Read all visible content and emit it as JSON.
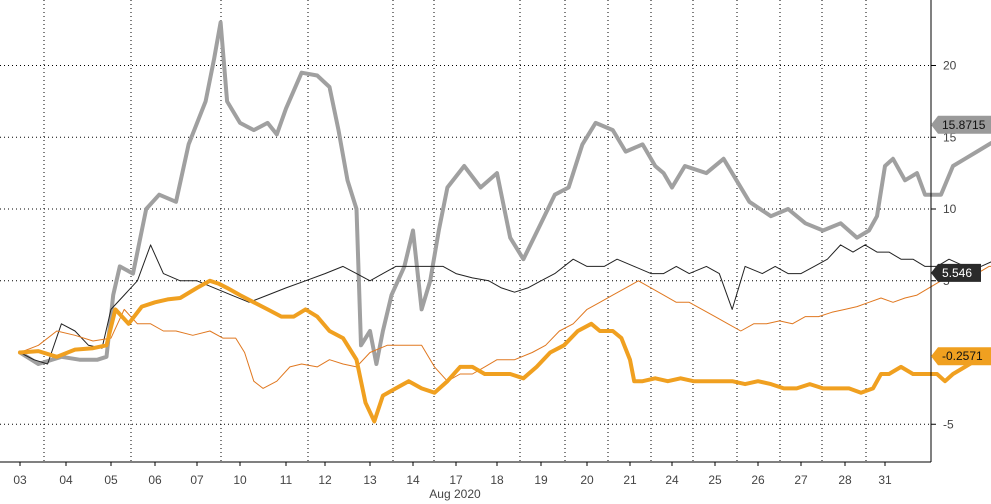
{
  "chart_data": {
    "type": "line",
    "month_label": "Aug 2020",
    "x_tick_labels": [
      "03",
      "04",
      "05",
      "06",
      "07",
      "10",
      "11",
      "12",
      "13",
      "14",
      "17",
      "18",
      "19",
      "20",
      "21",
      "24",
      "25",
      "26",
      "27",
      "28",
      "31"
    ],
    "y_tick_labels": [
      "20",
      "15",
      "10",
      "5",
      "-5"
    ],
    "ylim": [
      -7.5,
      25
    ],
    "grid": true,
    "grid_style": "dotted",
    "y_axis_side": "right",
    "series": [
      {
        "color": "#a0a0a0",
        "end_label": "15.8715",
        "values": [
          [
            0,
            0
          ],
          [
            0.4,
            -0.8
          ],
          [
            0.9,
            -0.3
          ],
          [
            1.3,
            -0.5
          ],
          [
            1.7,
            -0.5
          ],
          [
            1.9,
            -0.3
          ],
          [
            2.05,
            4
          ],
          [
            2.2,
            6
          ],
          [
            2.5,
            5.5
          ],
          [
            2.8,
            10
          ],
          [
            3.1,
            11
          ],
          [
            3.5,
            10.5
          ],
          [
            3.8,
            14.5
          ],
          [
            4.2,
            17.5
          ],
          [
            4.4,
            20.5
          ],
          [
            4.55,
            23
          ],
          [
            4.7,
            17.5
          ],
          [
            5.0,
            16
          ],
          [
            5.3,
            15.5
          ],
          [
            5.6,
            16
          ],
          [
            5.8,
            15.2
          ],
          [
            6.0,
            17
          ],
          [
            6.4,
            19.5
          ],
          [
            6.8,
            19.3
          ],
          [
            7.1,
            18.5
          ],
          [
            7.3,
            15.5
          ],
          [
            7.5,
            12
          ],
          [
            7.7,
            10
          ],
          [
            7.8,
            0.5
          ],
          [
            8.0,
            1.5
          ],
          [
            8.15,
            -0.8
          ],
          [
            8.3,
            1.5
          ],
          [
            8.5,
            4
          ],
          [
            8.8,
            6
          ],
          [
            9.0,
            8.5
          ],
          [
            9.2,
            3
          ],
          [
            9.4,
            5
          ],
          [
            9.6,
            8.5
          ],
          [
            9.8,
            11.5
          ],
          [
            10.2,
            13
          ],
          [
            10.6,
            11.5
          ],
          [
            11.0,
            12.5
          ],
          [
            11.3,
            8
          ],
          [
            11.6,
            6.5
          ],
          [
            12.0,
            9
          ],
          [
            12.3,
            11
          ],
          [
            12.6,
            11.5
          ],
          [
            12.9,
            14.5
          ],
          [
            13.2,
            16
          ],
          [
            13.6,
            15.5
          ],
          [
            13.9,
            14
          ],
          [
            14.3,
            14.5
          ],
          [
            14.6,
            13
          ],
          [
            14.8,
            12.5
          ],
          [
            15.0,
            11.5
          ],
          [
            15.3,
            13
          ],
          [
            15.8,
            12.5
          ],
          [
            16.2,
            13.5
          ],
          [
            16.5,
            12
          ],
          [
            16.8,
            10.5
          ],
          [
            17.3,
            9.5
          ],
          [
            17.7,
            10
          ],
          [
            18.1,
            9
          ],
          [
            18.5,
            8.5
          ],
          [
            18.9,
            9
          ],
          [
            19.3,
            8
          ],
          [
            19.6,
            8.5
          ],
          [
            19.8,
            9.5
          ],
          [
            20.0,
            13
          ],
          [
            20.2,
            13.5
          ],
          [
            20.5,
            12
          ],
          [
            20.8,
            12.5
          ],
          [
            21.0,
            11
          ],
          [
            21.4,
            11
          ],
          [
            21.7,
            13
          ],
          [
            22.0,
            13.5
          ],
          [
            22.3,
            14
          ],
          [
            22.6,
            14.5
          ],
          [
            22.9,
            15
          ],
          [
            23.2,
            15
          ],
          [
            23.5,
            15.5
          ],
          [
            23.7,
            16
          ],
          [
            23.85,
            15.87
          ]
        ]
      },
      {
        "color": "#222222",
        "end_label": "5.546",
        "values": [
          [
            0,
            0
          ],
          [
            0.3,
            -0.5
          ],
          [
            0.6,
            -0.8
          ],
          [
            0.9,
            2
          ],
          [
            1.2,
            1.5
          ],
          [
            1.5,
            0.5
          ],
          [
            1.8,
            0.3
          ],
          [
            2.0,
            3
          ],
          [
            2.3,
            4
          ],
          [
            2.6,
            5
          ],
          [
            2.9,
            7.5
          ],
          [
            3.2,
            5.5
          ],
          [
            3.6,
            5
          ],
          [
            4.0,
            5
          ],
          [
            4.4,
            4.5
          ],
          [
            4.8,
            4
          ],
          [
            5.2,
            3.5
          ],
          [
            5.6,
            4
          ],
          [
            6.0,
            4.5
          ],
          [
            6.5,
            5
          ],
          [
            7.0,
            5.5
          ],
          [
            7.4,
            6
          ],
          [
            7.7,
            5.5
          ],
          [
            8.0,
            5
          ],
          [
            8.3,
            5.5
          ],
          [
            8.6,
            6
          ],
          [
            9.0,
            6
          ],
          [
            9.4,
            6
          ],
          [
            9.7,
            6
          ],
          [
            10.0,
            5.5
          ],
          [
            10.4,
            5.2
          ],
          [
            10.8,
            5
          ],
          [
            11.1,
            4.5
          ],
          [
            11.4,
            4.2
          ],
          [
            11.7,
            4.5
          ],
          [
            12.0,
            5
          ],
          [
            12.3,
            5.5
          ],
          [
            12.7,
            6.5
          ],
          [
            13.0,
            6
          ],
          [
            13.4,
            6
          ],
          [
            13.7,
            6.5
          ],
          [
            14.1,
            6
          ],
          [
            14.5,
            5.5
          ],
          [
            14.8,
            5.5
          ],
          [
            15.1,
            6
          ],
          [
            15.4,
            5.5
          ],
          [
            15.8,
            6
          ],
          [
            16.1,
            5.5
          ],
          [
            16.4,
            3
          ],
          [
            16.7,
            6
          ],
          [
            17.1,
            5.5
          ],
          [
            17.4,
            6
          ],
          [
            17.7,
            5.5
          ],
          [
            18.0,
            5.5
          ],
          [
            18.3,
            6
          ],
          [
            18.6,
            6.5
          ],
          [
            18.9,
            7.5
          ],
          [
            19.2,
            7
          ],
          [
            19.5,
            7.5
          ],
          [
            19.8,
            7
          ],
          [
            20.1,
            7
          ],
          [
            20.4,
            6.5
          ],
          [
            20.7,
            6.5
          ],
          [
            21.0,
            6
          ],
          [
            21.3,
            6
          ],
          [
            21.6,
            6.5
          ],
          [
            22.0,
            6
          ],
          [
            22.4,
            6
          ],
          [
            22.8,
            6.5
          ],
          [
            23.1,
            6
          ],
          [
            23.4,
            7
          ],
          [
            23.6,
            6.5
          ],
          [
            23.85,
            5.55
          ]
        ]
      },
      {
        "color": "#e07820",
        "end_label": "",
        "values": [
          [
            0,
            0
          ],
          [
            0.4,
            0.5
          ],
          [
            0.8,
            1.5
          ],
          [
            1.2,
            1.2
          ],
          [
            1.6,
            0.8
          ],
          [
            2.0,
            1
          ],
          [
            2.3,
            3
          ],
          [
            2.6,
            2
          ],
          [
            2.9,
            2
          ],
          [
            3.2,
            1.5
          ],
          [
            3.5,
            1.5
          ],
          [
            3.9,
            1.2
          ],
          [
            4.3,
            1.5
          ],
          [
            4.6,
            1
          ],
          [
            4.9,
            1
          ],
          [
            5.1,
            0
          ],
          [
            5.3,
            -2
          ],
          [
            5.5,
            -2.5
          ],
          [
            5.8,
            -2
          ],
          [
            6.1,
            -1
          ],
          [
            6.4,
            -0.8
          ],
          [
            6.8,
            -1
          ],
          [
            7.1,
            -0.5
          ],
          [
            7.4,
            -0.8
          ],
          [
            7.7,
            -1
          ],
          [
            8.0,
            0
          ],
          [
            8.4,
            0.5
          ],
          [
            8.8,
            0.5
          ],
          [
            9.2,
            0.5
          ],
          [
            9.5,
            -1
          ],
          [
            9.8,
            -2
          ],
          [
            10.1,
            -1.5
          ],
          [
            10.4,
            -1.5
          ],
          [
            10.7,
            -1
          ],
          [
            11.0,
            -0.5
          ],
          [
            11.4,
            -0.5
          ],
          [
            11.8,
            0
          ],
          [
            12.1,
            0.5
          ],
          [
            12.4,
            1.5
          ],
          [
            12.7,
            2
          ],
          [
            13.0,
            3
          ],
          [
            13.3,
            3.5
          ],
          [
            13.6,
            4
          ],
          [
            13.9,
            4.5
          ],
          [
            14.2,
            5
          ],
          [
            14.5,
            4.5
          ],
          [
            14.8,
            4
          ],
          [
            15.1,
            3.5
          ],
          [
            15.4,
            3.5
          ],
          [
            15.7,
            3
          ],
          [
            16.0,
            2.5
          ],
          [
            16.3,
            2
          ],
          [
            16.6,
            1.5
          ],
          [
            16.9,
            2
          ],
          [
            17.2,
            2
          ],
          [
            17.5,
            2.2
          ],
          [
            17.8,
            2
          ],
          [
            18.1,
            2.5
          ],
          [
            18.4,
            2.5
          ],
          [
            18.7,
            2.8
          ],
          [
            19.0,
            3
          ],
          [
            19.3,
            3.2
          ],
          [
            19.6,
            3.5
          ],
          [
            19.9,
            3.8
          ],
          [
            20.2,
            3.5
          ],
          [
            20.5,
            3.8
          ],
          [
            20.8,
            4
          ],
          [
            21.1,
            4.5
          ],
          [
            21.4,
            5
          ],
          [
            21.7,
            5.5
          ],
          [
            22.0,
            5
          ],
          [
            22.3,
            5.5
          ],
          [
            22.6,
            6
          ],
          [
            22.9,
            6
          ],
          [
            23.2,
            6
          ],
          [
            23.5,
            6.2
          ],
          [
            23.85,
            5.6
          ]
        ]
      },
      {
        "color": "#f0a020",
        "end_label": "-0.2571",
        "values": [
          [
            0,
            0
          ],
          [
            0.4,
            0.1
          ],
          [
            0.8,
            -0.3
          ],
          [
            1.2,
            0.2
          ],
          [
            1.6,
            0.3
          ],
          [
            1.9,
            0.5
          ],
          [
            2.1,
            3
          ],
          [
            2.4,
            2
          ],
          [
            2.7,
            3.2
          ],
          [
            3.0,
            3.5
          ],
          [
            3.3,
            3.7
          ],
          [
            3.6,
            3.8
          ],
          [
            4.0,
            4.5
          ],
          [
            4.3,
            5
          ],
          [
            4.5,
            4.8
          ],
          [
            4.7,
            4.5
          ],
          [
            5.0,
            4
          ],
          [
            5.3,
            3.5
          ],
          [
            5.6,
            3
          ],
          [
            5.9,
            2.5
          ],
          [
            6.2,
            2.5
          ],
          [
            6.5,
            3
          ],
          [
            6.8,
            2.5
          ],
          [
            7.1,
            1.5
          ],
          [
            7.4,
            1
          ],
          [
            7.7,
            -0.5
          ],
          [
            7.9,
            -3.5
          ],
          [
            8.1,
            -4.8
          ],
          [
            8.3,
            -3
          ],
          [
            8.6,
            -2.5
          ],
          [
            8.9,
            -2
          ],
          [
            9.2,
            -2.5
          ],
          [
            9.5,
            -2.8
          ],
          [
            9.8,
            -2
          ],
          [
            10.1,
            -1
          ],
          [
            10.4,
            -1
          ],
          [
            10.7,
            -1.5
          ],
          [
            11.0,
            -1.5
          ],
          [
            11.3,
            -1.5
          ],
          [
            11.6,
            -1.8
          ],
          [
            11.9,
            -1
          ],
          [
            12.2,
            0
          ],
          [
            12.5,
            0.5
          ],
          [
            12.8,
            1.5
          ],
          [
            13.1,
            2
          ],
          [
            13.3,
            1.5
          ],
          [
            13.6,
            1.5
          ],
          [
            13.8,
            1
          ],
          [
            14.0,
            -0.5
          ],
          [
            14.1,
            -2
          ],
          [
            14.3,
            -2
          ],
          [
            14.6,
            -1.8
          ],
          [
            14.9,
            -2
          ],
          [
            15.2,
            -1.8
          ],
          [
            15.5,
            -2
          ],
          [
            15.8,
            -2
          ],
          [
            16.1,
            -2
          ],
          [
            16.4,
            -2
          ],
          [
            16.7,
            -2.2
          ],
          [
            17.0,
            -2
          ],
          [
            17.3,
            -2.2
          ],
          [
            17.6,
            -2.5
          ],
          [
            17.9,
            -2.5
          ],
          [
            18.2,
            -2.2
          ],
          [
            18.5,
            -2.5
          ],
          [
            18.8,
            -2.5
          ],
          [
            19.1,
            -2.5
          ],
          [
            19.4,
            -2.8
          ],
          [
            19.7,
            -2.5
          ],
          [
            19.9,
            -1.5
          ],
          [
            20.1,
            -1.5
          ],
          [
            20.4,
            -1
          ],
          [
            20.7,
            -1.5
          ],
          [
            21.0,
            -1.5
          ],
          [
            21.3,
            -1.5
          ],
          [
            21.5,
            -2
          ],
          [
            21.7,
            -1.5
          ],
          [
            22.0,
            -1
          ],
          [
            22.3,
            -0.5
          ],
          [
            22.6,
            -0.5
          ],
          [
            22.9,
            -0.3
          ],
          [
            23.2,
            -0.5
          ],
          [
            23.5,
            -0.2
          ],
          [
            23.85,
            -0.26
          ]
        ]
      }
    ]
  }
}
